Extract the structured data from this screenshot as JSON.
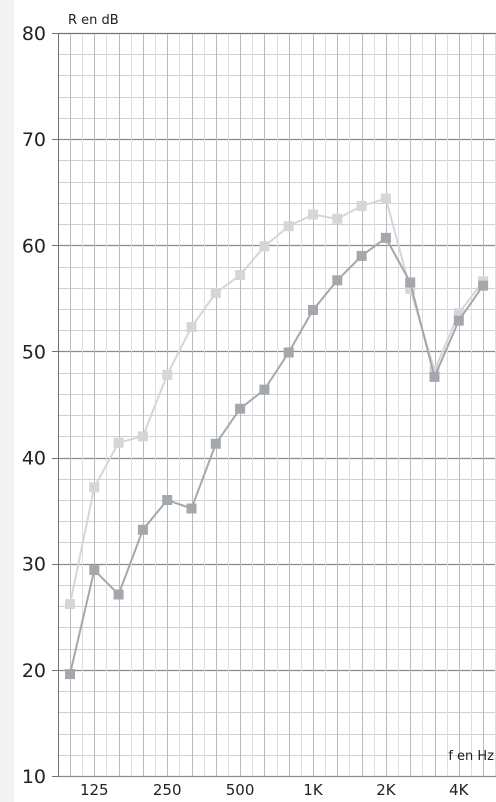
{
  "chart_data": {
    "type": "line",
    "ylabel": "R en dB",
    "xlabel": "f en Hz",
    "ylim": [
      10,
      80
    ],
    "y_ticks": [
      10,
      20,
      30,
      40,
      50,
      60,
      70,
      80
    ],
    "x_tick_labels": [
      "125",
      "250",
      "500",
      "1K",
      "2K",
      "4K"
    ],
    "grid": true,
    "x": [
      "100",
      "125",
      "160",
      "200",
      "250",
      "315",
      "400",
      "500",
      "630",
      "800",
      "1K",
      "1.25K",
      "1.6K",
      "2K",
      "2.5K",
      "3.15K",
      "4K",
      "5K"
    ],
    "series": [
      {
        "color": "#d4d6d9",
        "values": [
          26.2,
          37.2,
          41.4,
          42.0,
          47.8,
          52.3,
          55.5,
          57.2,
          59.9,
          61.8,
          62.9,
          62.5,
          63.7,
          64.4,
          55.9,
          48.2,
          53.6,
          56.6
        ]
      },
      {
        "color": "#a4a8ac",
        "values": [
          19.6,
          29.4,
          27.1,
          33.2,
          36.0,
          35.2,
          41.3,
          44.6,
          46.4,
          49.9,
          53.9,
          56.7,
          59.0,
          60.7,
          56.5,
          47.6,
          52.9,
          56.2
        ]
      }
    ]
  }
}
